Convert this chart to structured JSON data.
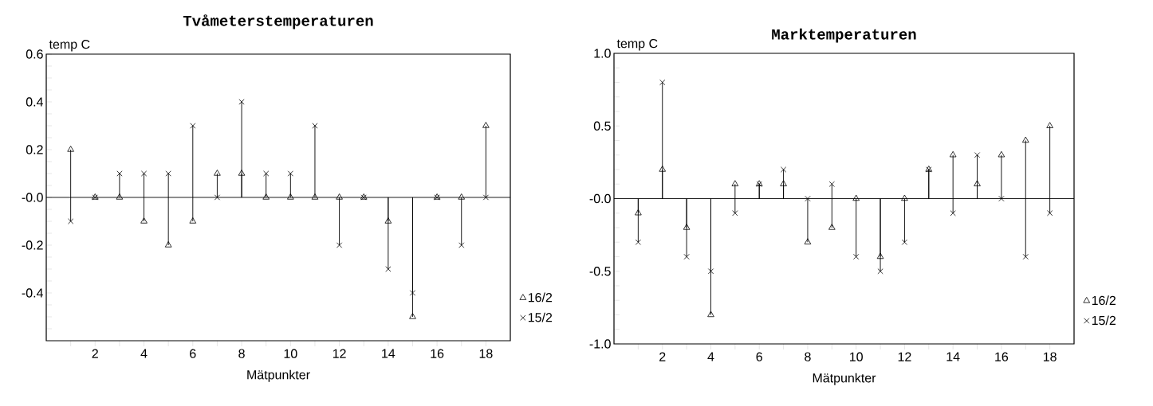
{
  "chart_data": [
    {
      "type": "lollipop",
      "title": "Tvåmeterstemperaturen",
      "xlabel": "Mätpunkter",
      "ylabel": "temp C",
      "x": [
        1,
        2,
        3,
        4,
        5,
        6,
        7,
        8,
        9,
        10,
        11,
        12,
        13,
        14,
        15,
        16,
        17,
        18
      ],
      "series": [
        {
          "name": "16/2",
          "color": "#000000",
          "marker": "triangle",
          "values": [
            0.2,
            0.0,
            0.0,
            -0.1,
            -0.2,
            -0.1,
            0.1,
            0.1,
            0.0,
            0.0,
            0.0,
            0.0,
            0.0,
            -0.1,
            -0.5,
            0.0,
            0.0,
            0.3
          ]
        },
        {
          "name": "15/2",
          "color": "#000000",
          "marker": "cross",
          "values": [
            -0.1,
            0.0,
            0.1,
            0.1,
            0.1,
            0.3,
            0.0,
            0.4,
            0.1,
            0.1,
            0.3,
            -0.2,
            0.0,
            -0.3,
            -0.4,
            0.0,
            -0.2,
            0.0
          ]
        }
      ],
      "xlim": [
        0,
        19
      ],
      "ylim": [
        -0.6,
        0.6
      ],
      "legend": "right",
      "ref_lines": [
        {
          "axis": "y",
          "value": 0
        }
      ],
      "xticks": [
        {
          "value": 1,
          "label": null
        },
        2,
        {
          "value": 3,
          "label": null
        },
        4,
        {
          "value": 5,
          "label": null
        },
        6,
        {
          "value": 7,
          "label": null
        },
        8,
        {
          "value": 9,
          "label": null
        },
        10,
        {
          "value": 11,
          "label": null
        },
        12,
        {
          "value": 13,
          "label": null
        },
        14,
        {
          "value": 15,
          "label": null
        },
        16,
        {
          "value": 17,
          "label": null
        },
        18
      ],
      "yticks": [
        {
          "value": -0.55,
          "label": null
        },
        {
          "value": -0.5,
          "label": null
        },
        {
          "value": -0.45,
          "label": null
        },
        {
          "value": -0.4,
          "label": "-0.4"
        },
        {
          "value": -0.35,
          "label": null
        },
        {
          "value": -0.3,
          "label": null
        },
        {
          "value": -0.25,
          "label": null
        },
        {
          "value": -0.2,
          "label": "-0.2"
        },
        {
          "value": -0.15,
          "label": null
        },
        {
          "value": -0.1,
          "label": null
        },
        {
          "value": -0.05,
          "label": null
        },
        {
          "value": 0,
          "label": "-0.0"
        },
        {
          "value": 0.05,
          "label": null
        },
        {
          "value": 0.1,
          "label": null
        },
        {
          "value": 0.15,
          "label": null
        },
        {
          "value": 0.2,
          "label": "0.2"
        },
        {
          "value": 0.25,
          "label": null
        },
        {
          "value": 0.3,
          "label": null
        },
        {
          "value": 0.35,
          "label": null
        },
        {
          "value": 0.4,
          "label": "0.4"
        },
        {
          "value": 0.45,
          "label": null
        },
        {
          "value": 0.5,
          "label": null
        },
        {
          "value": 0.55,
          "label": null
        },
        {
          "value": 0.6,
          "label": "0.6"
        }
      ]
    },
    {
      "type": "lollipop",
      "title": "Marktemperaturen",
      "xlabel": "Mätpunkter",
      "ylabel": "temp C",
      "x": [
        1,
        2,
        3,
        4,
        5,
        6,
        7,
        8,
        9,
        10,
        11,
        12,
        13,
        14,
        15,
        16,
        17,
        18
      ],
      "series": [
        {
          "name": "16/2",
          "color": "#000000",
          "marker": "triangle",
          "values": [
            -0.1,
            0.2,
            -0.2,
            -0.8,
            0.1,
            0.1,
            0.1,
            -0.3,
            -0.2,
            0.0,
            -0.4,
            0.0,
            0.2,
            0.3,
            0.1,
            0.3,
            0.4,
            0.5
          ]
        },
        {
          "name": "15/2",
          "color": "#000000",
          "marker": "cross",
          "values": [
            -0.3,
            0.8,
            -0.4,
            -0.5,
            -0.1,
            0.1,
            0.2,
            0.0,
            0.1,
            -0.4,
            -0.5,
            -0.3,
            0.2,
            -0.1,
            0.3,
            0.0,
            -0.4,
            -0.1
          ]
        }
      ],
      "xlim": [
        0,
        19
      ],
      "ylim": [
        -1.0,
        1.0
      ],
      "legend": "right",
      "ref_lines": [
        {
          "axis": "y",
          "value": 0
        }
      ],
      "xticks": [
        {
          "value": 1,
          "label": null
        },
        2,
        {
          "value": 3,
          "label": null
        },
        4,
        {
          "value": 5,
          "label": null
        },
        6,
        {
          "value": 7,
          "label": null
        },
        8,
        {
          "value": 9,
          "label": null
        },
        10,
        {
          "value": 11,
          "label": null
        },
        12,
        {
          "value": 13,
          "label": null
        },
        14,
        {
          "value": 15,
          "label": null
        },
        16,
        {
          "value": 17,
          "label": null
        },
        18
      ],
      "yticks": [
        {
          "value": -1.0,
          "label": "-1.0"
        },
        {
          "value": -0.9,
          "label": null
        },
        {
          "value": -0.8,
          "label": null
        },
        {
          "value": -0.7,
          "label": null
        },
        {
          "value": -0.6,
          "label": null
        },
        {
          "value": -0.5,
          "label": "-0.5"
        },
        {
          "value": -0.4,
          "label": null
        },
        {
          "value": -0.3,
          "label": null
        },
        {
          "value": -0.2,
          "label": null
        },
        {
          "value": -0.1,
          "label": null
        },
        {
          "value": 0,
          "label": "-0.0"
        },
        {
          "value": 0.1,
          "label": null
        },
        {
          "value": 0.2,
          "label": null
        },
        {
          "value": 0.3,
          "label": null
        },
        {
          "value": 0.4,
          "label": null
        },
        {
          "value": 0.5,
          "label": "0.5"
        },
        {
          "value": 0.6,
          "label": null
        },
        {
          "value": 0.7,
          "label": null
        },
        {
          "value": 0.8,
          "label": null
        },
        {
          "value": 0.9,
          "label": null
        },
        {
          "value": 1.0,
          "label": "1.0"
        }
      ]
    }
  ]
}
